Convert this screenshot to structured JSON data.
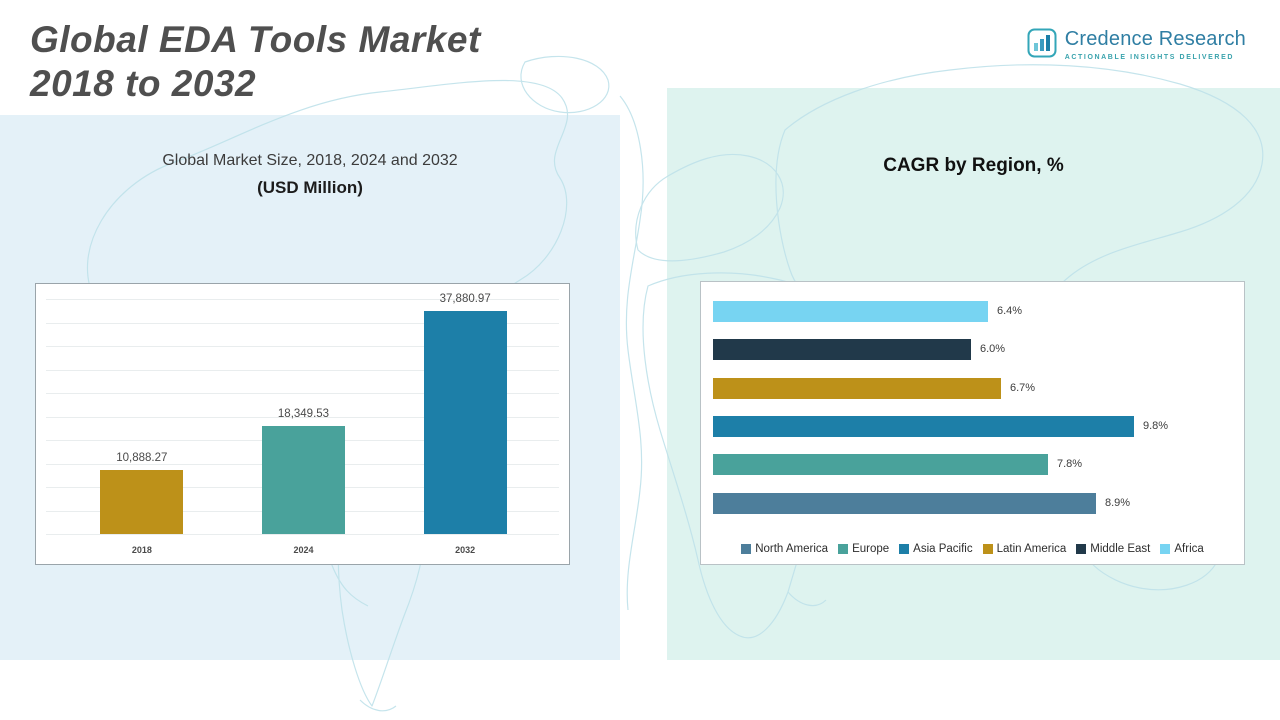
{
  "header": {
    "title_line1": "Global EDA Tools Market",
    "title_line2": "2018 to 2032"
  },
  "logo": {
    "name": "Credence Research",
    "tagline": "Actionable Insights Delivered"
  },
  "chart_data": [
    {
      "type": "bar",
      "orientation": "vertical",
      "title": "Global Market Size, 2018, 2024 and 2032",
      "subtitle": "(USD Million)",
      "categories": [
        "2018",
        "2024",
        "2032"
      ],
      "values": [
        10888.27,
        18349.53,
        37880.97
      ],
      "value_labels": [
        "10,888.27",
        "18,349.53",
        "37,880.97"
      ],
      "colors": [
        "#bd9119",
        "#49a29b",
        "#1d7fa8"
      ],
      "xlabel": "",
      "ylabel": "",
      "ylim": [
        0,
        40000
      ],
      "grid": true,
      "legend_position": "none"
    },
    {
      "type": "bar",
      "orientation": "horizontal",
      "title": "CAGR by Region, %",
      "categories": [
        "Africa",
        "Middle East",
        "Latin America",
        "Asia Pacific",
        "Europe",
        "North America"
      ],
      "values": [
        6.4,
        6.0,
        6.7,
        9.8,
        7.8,
        8.9
      ],
      "value_labels": [
        "6.4%",
        "6.0%",
        "6.7%",
        "9.8%",
        "7.8%",
        "8.9%"
      ],
      "colors": [
        "#77d4f2",
        "#21394a",
        "#bd9119",
        "#1d7fa8",
        "#49a29b",
        "#4d7e9b"
      ],
      "xlabel": "",
      "ylabel": "",
      "xlim": [
        0,
        12
      ],
      "grid": false,
      "legend_position": "bottom",
      "legend": [
        {
          "label": "North America",
          "color": "#4d7e9b"
        },
        {
          "label": "Europe",
          "color": "#49a29b"
        },
        {
          "label": "Asia Pacific",
          "color": "#1d7fa8"
        },
        {
          "label": "Latin America",
          "color": "#bd9119"
        },
        {
          "label": "Middle East",
          "color": "#21394a"
        },
        {
          "label": "Africa",
          "color": "#77d4f2"
        }
      ]
    }
  ]
}
